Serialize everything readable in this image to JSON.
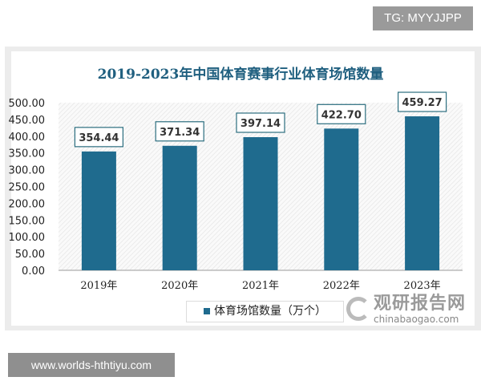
{
  "watermark_top": "TG: MYYJJPP",
  "watermark_bottom": "www.worlds-hthtiyu.com",
  "source_logo": {
    "cn": "观研报告网",
    "en": "chinabaogao.com"
  },
  "chart_data": {
    "type": "bar",
    "title": "2019-2023年中国体育赛事行业体育场馆数量",
    "categories": [
      "2019年",
      "2020年",
      "2021年",
      "2022年",
      "2023年"
    ],
    "series": [
      {
        "name": "体育场馆数量（万个）",
        "values": [
          354.44,
          371.34,
          397.14,
          422.7,
          459.27
        ],
        "labels": [
          "354.44",
          "371.34",
          "397.14",
          "422.70",
          "459.27"
        ],
        "color": "#1f6b8e"
      }
    ],
    "ylim": [
      0,
      500
    ],
    "yticks": [
      "0.00",
      "50.00",
      "100.00",
      "150.00",
      "200.00",
      "250.00",
      "300.00",
      "350.00",
      "400.00",
      "450.00",
      "500.00"
    ],
    "legend_position": "bottom",
    "grid": false,
    "background_pattern": "diagonal-hatch"
  }
}
